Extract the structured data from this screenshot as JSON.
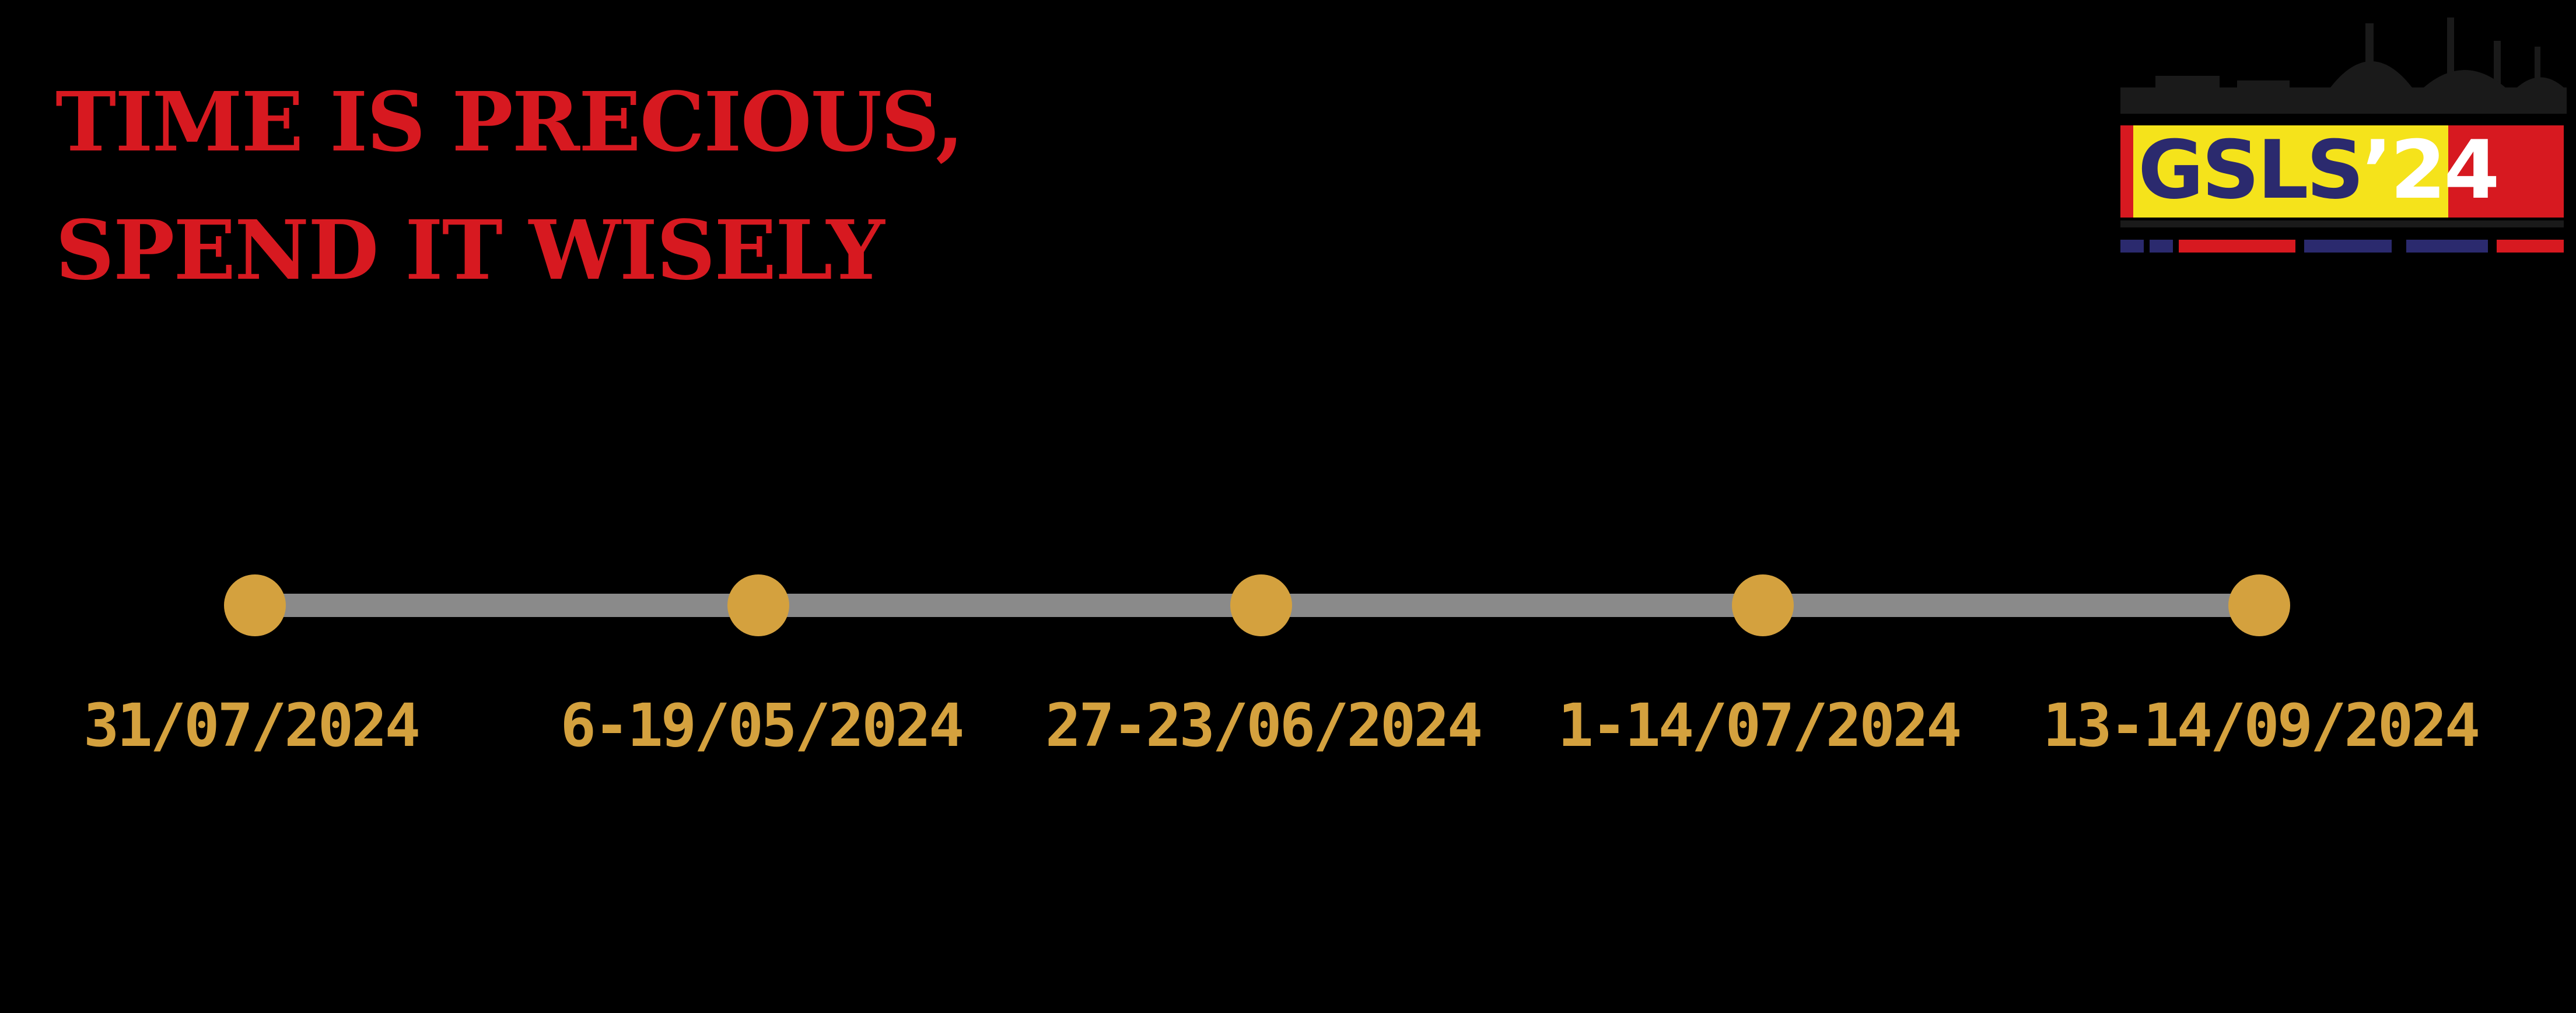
{
  "headline": {
    "line1": "TIME IS PRECIOUS,",
    "line2": "SPEND IT WISELY"
  },
  "logo": {
    "name": "GSLS",
    "year": "’24",
    "colors": {
      "red": "#d71920",
      "yellow": "#f5e31b",
      "navy": "#2b2a6e"
    }
  },
  "timeline": {
    "dates": [
      "31/07/2024",
      "6-19/05/2024",
      "27-23/06/2024",
      "1-14/07/2024",
      "13-14/09/2024"
    ],
    "colors": {
      "marker": "#d4a13e",
      "track": "#8a8a8a"
    }
  }
}
